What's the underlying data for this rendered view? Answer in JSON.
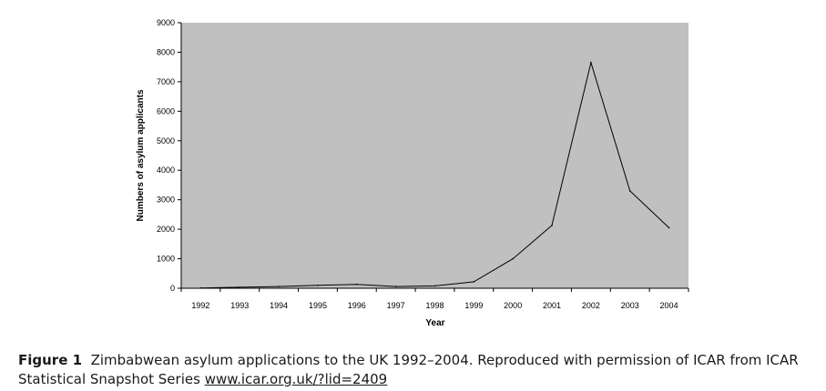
{
  "chart_data": {
    "type": "line",
    "x": [
      "1992",
      "1993",
      "1994",
      "1995",
      "1996",
      "1997",
      "1998",
      "1999",
      "2000",
      "2001",
      "2002",
      "2003",
      "2004"
    ],
    "series": [
      {
        "values": [
          10,
          35,
          60,
          100,
          130,
          60,
          80,
          220,
          1000,
          2130,
          7650,
          3300,
          2050
        ]
      }
    ],
    "xlabel": "Year",
    "ylabel": "Numbers of asylum applicants",
    "ylim": [
      0,
      9000
    ],
    "yticks": [
      0,
      1000,
      2000,
      3000,
      4000,
      5000,
      6000,
      7000,
      8000,
      9000
    ],
    "grid": false,
    "plot_background": "#c0c0c0",
    "line_color": "#000000"
  },
  "caption": {
    "label": "Figure 1",
    "text": "Zimbabwean asylum applications to the UK 1992–2004. Reproduced with permission of ICAR from ICAR Statistical Snapshot Series",
    "link": "www.icar.org.uk/?lid=2409"
  }
}
